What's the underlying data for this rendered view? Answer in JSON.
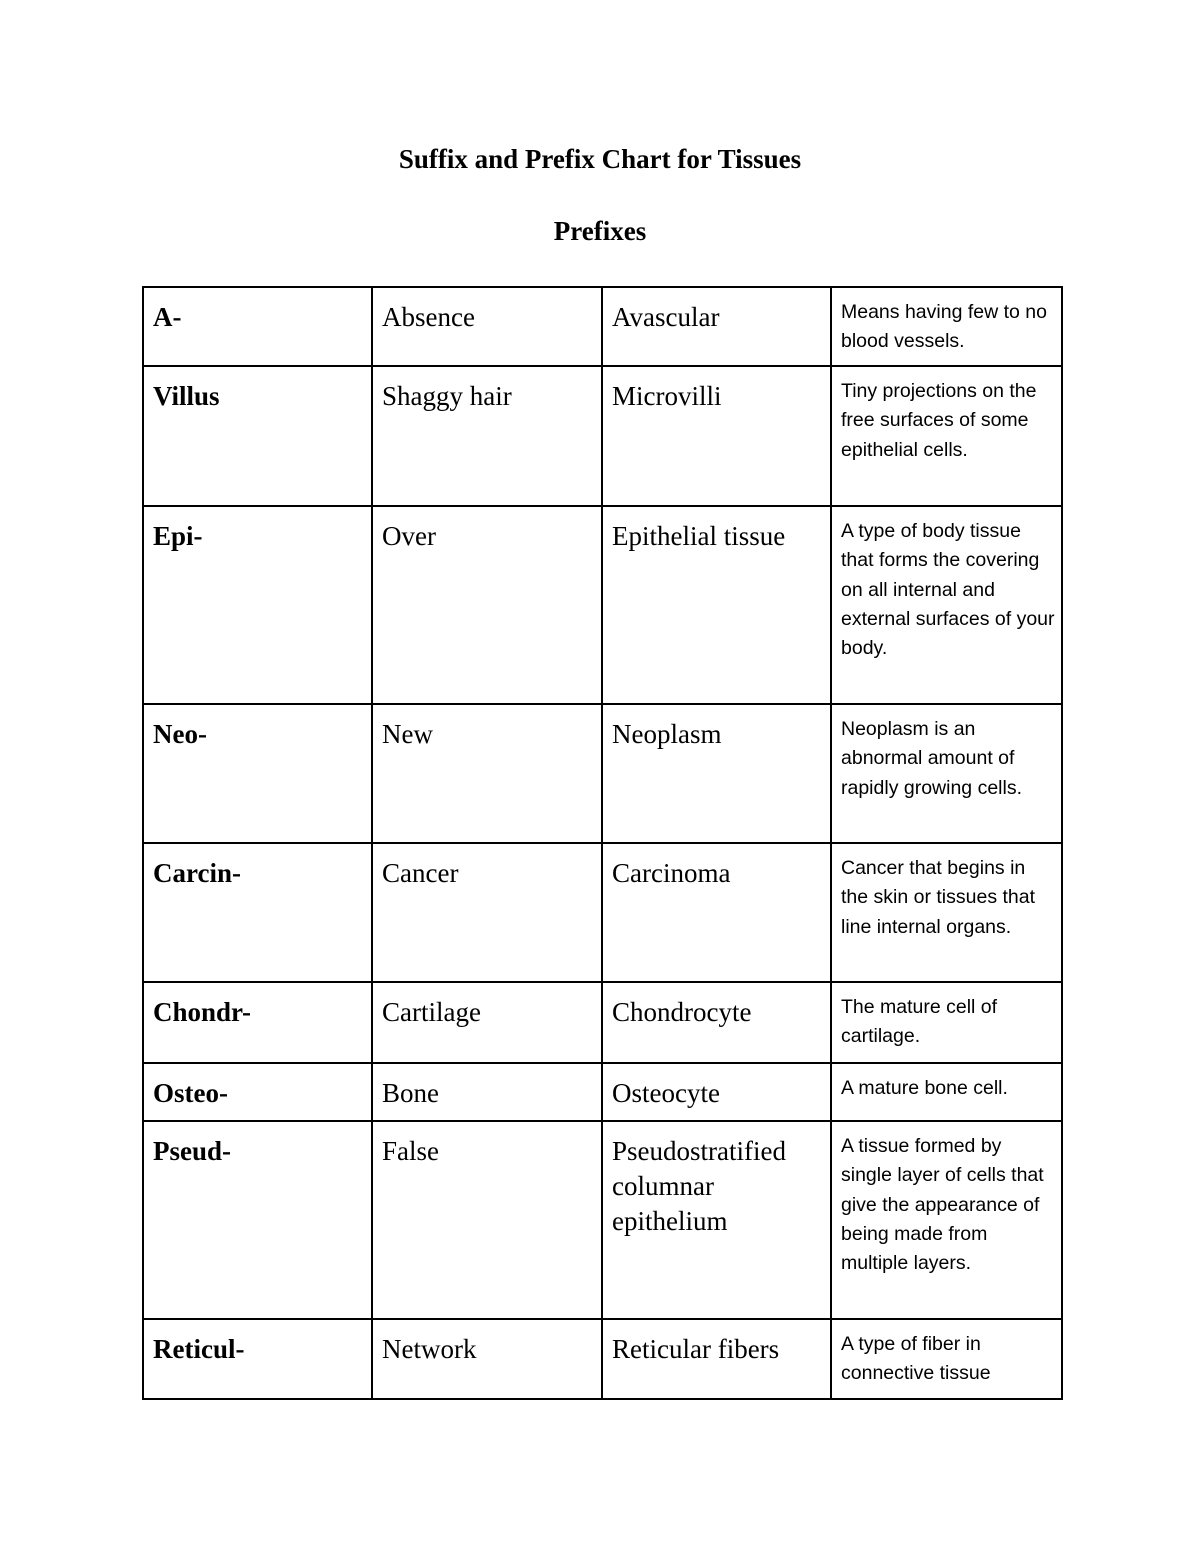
{
  "document": {
    "title": "Suffix and Prefix Chart for Tissues",
    "section": "Prefixes"
  },
  "prefixes": [
    {
      "prefix": "A-",
      "meaning": "Absence",
      "example": "Avascular",
      "definition": "Means having few to no blood vessels."
    },
    {
      "prefix": "Villus",
      "meaning": "Shaggy hair",
      "example": "Microvilli",
      "definition": "Tiny projections on the free surfaces of some epithelial cells."
    },
    {
      "prefix": "Epi-",
      "meaning": "Over",
      "example": "Epithelial tissue",
      "definition": "A type of body tissue that forms the covering on all internal and external surfaces of your body."
    },
    {
      "prefix": "Neo-",
      "meaning": "New",
      "example": "Neoplasm",
      "definition": "Neoplasm is an abnormal amount of rapidly growing cells."
    },
    {
      "prefix": "Carcin-",
      "meaning": "Cancer",
      "example": "Carcinoma",
      "definition": "Cancer that begins in the skin or tissues that line internal organs."
    },
    {
      "prefix": "Chondr-",
      "meaning": "Cartilage",
      "example": "Chondrocyte",
      "definition": "The mature cell of cartilage."
    },
    {
      "prefix": "Osteo-",
      "meaning": "Bone",
      "example": "Osteocyte",
      "definition": "A mature bone cell."
    },
    {
      "prefix": "Pseud-",
      "meaning": "False",
      "example": "Pseudostratified columnar epithelium",
      "definition": "A tissue formed by single layer of cells that give the appearance of being made from multiple layers."
    },
    {
      "prefix": "Reticul-",
      "meaning": "Network",
      "example": "Reticular fibers",
      "definition": "A type of fiber in connective tissue"
    }
  ]
}
